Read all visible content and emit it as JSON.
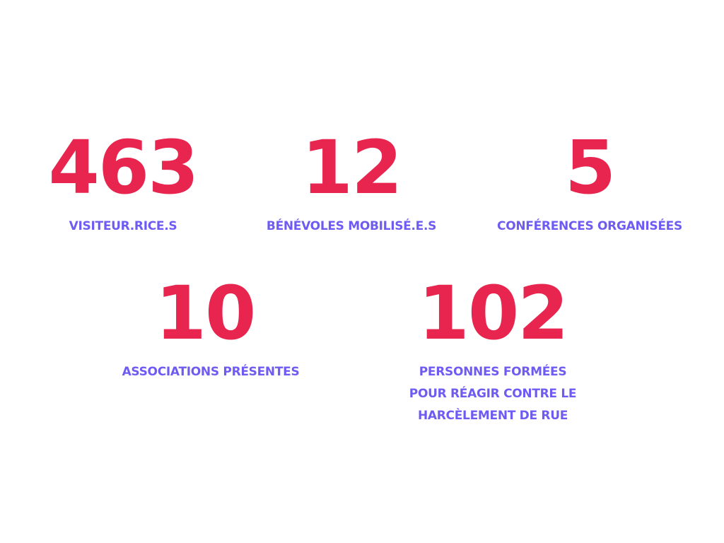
{
  "colors": {
    "number": "#E8254F",
    "label": "#6E5CF2"
  },
  "stats": [
    {
      "value": "463",
      "label": "VISITEUR.RICE.S"
    },
    {
      "value": "12",
      "label": "BÉNÉVOLES MOBILISÉ.E.S"
    },
    {
      "value": "5",
      "label": "CONFÉRENCES ORGANISÉES"
    },
    {
      "value": "10",
      "label": "ASSOCIATIONS PRÉSENTES"
    },
    {
      "value": "102",
      "label_lines": [
        "PERSONNES FORMÉES",
        "POUR RÉAGIR CONTRE LE",
        "HARCÈLEMENT DE RUE"
      ]
    }
  ]
}
